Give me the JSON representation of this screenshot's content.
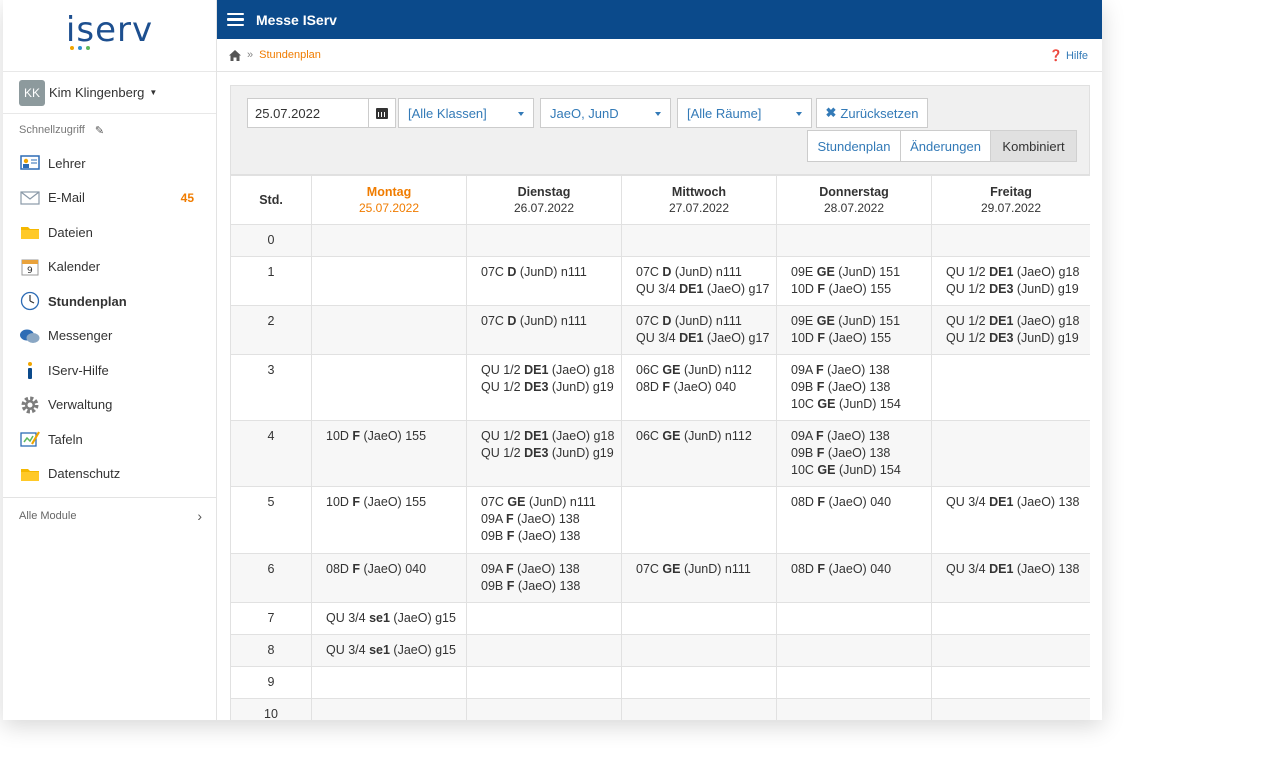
{
  "app": {
    "logo": "iserv",
    "window_title": "Messe IServ",
    "colors": {
      "topbar": "#0b4a8b",
      "accent": "#f07c00",
      "link": "#337ab7"
    }
  },
  "user": {
    "initials": "KK",
    "name": "Kim Klingenberg"
  },
  "sidebar": {
    "quick_access": "Schnellzugriff",
    "items": [
      {
        "label": "Lehrer",
        "icon": "teacher-board-icon"
      },
      {
        "label": "E-Mail",
        "icon": "envelope-icon",
        "badge": "45"
      },
      {
        "label": "Dateien",
        "icon": "folder-icon"
      },
      {
        "label": "Kalender",
        "icon": "calendar-icon"
      },
      {
        "label": "Stundenplan",
        "icon": "clock-icon"
      },
      {
        "label": "Messenger",
        "icon": "chat-bubbles-icon"
      },
      {
        "label": "IServ-Hilfe",
        "icon": "info-icon"
      },
      {
        "label": "Verwaltung",
        "icon": "gear-icon"
      },
      {
        "label": "Tafeln",
        "icon": "whiteboard-icon"
      },
      {
        "label": "Datenschutz",
        "icon": "folder-icon"
      }
    ],
    "all_modules": "Alle Module"
  },
  "breadcrumb": {
    "current": "Stundenplan",
    "separator": "»",
    "help": "Hilfe"
  },
  "filters": {
    "date": "25.07.2022",
    "classes": "[Alle Klassen]",
    "teachers": "JaeO, JunD",
    "rooms": "[Alle Räume]",
    "reset": "Zurücksetzen",
    "views": [
      "Stundenplan",
      "Änderungen",
      "Kombiniert"
    ],
    "active_view": "Kombiniert"
  },
  "timetable": {
    "hour_header": "Std.",
    "days": [
      {
        "name": "Montag",
        "date": "25.07.2022"
      },
      {
        "name": "Dienstag",
        "date": "26.07.2022"
      },
      {
        "name": "Mittwoch",
        "date": "27.07.2022"
      },
      {
        "name": "Donnerstag",
        "date": "28.07.2022"
      },
      {
        "name": "Freitag",
        "date": "29.07.2022"
      }
    ]
  }
}
